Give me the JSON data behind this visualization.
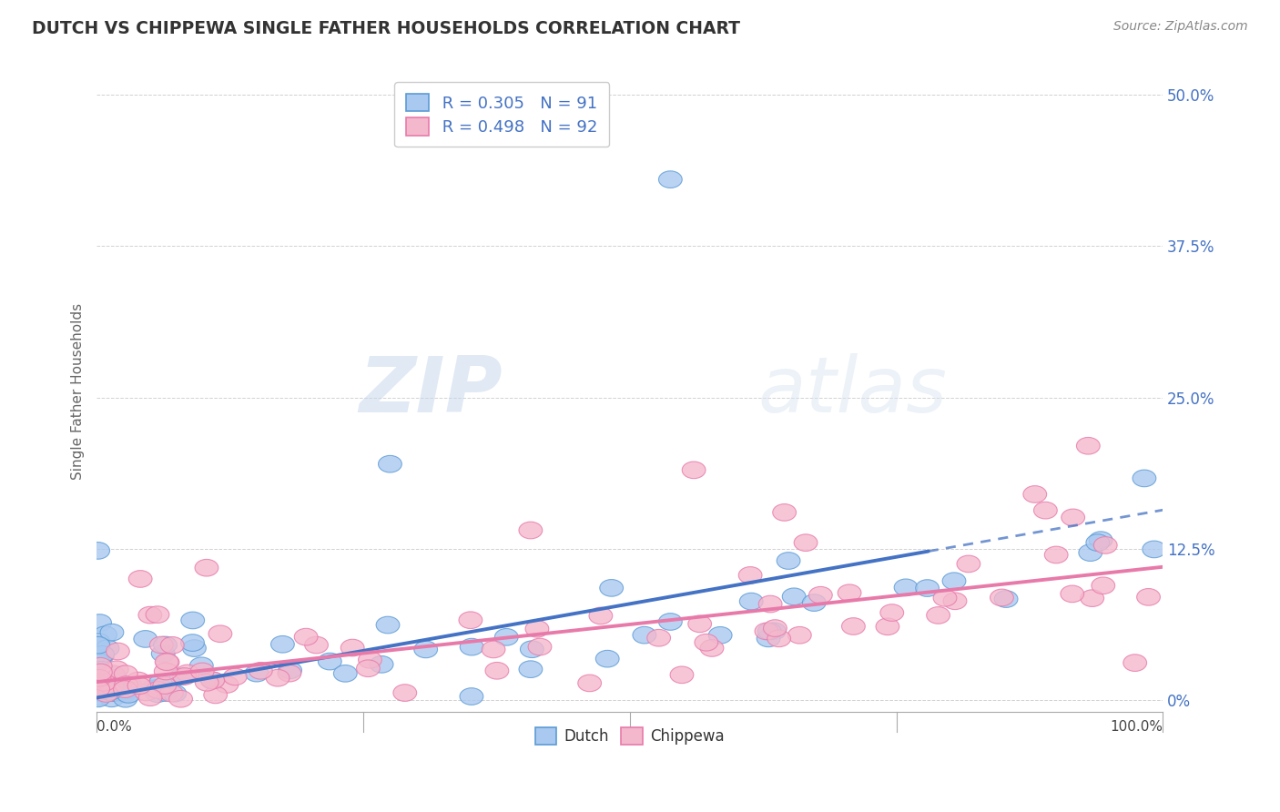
{
  "title": "DUTCH VS CHIPPEWA SINGLE FATHER HOUSEHOLDS CORRELATION CHART",
  "source_text": "Source: ZipAtlas.com",
  "ylabel": "Single Father Households",
  "r_dutch": 0.305,
  "n_dutch": 91,
  "r_chippewa": 0.498,
  "n_chippewa": 92,
  "color_dutch_fill": "#aac9f0",
  "color_dutch_edge": "#5b9bd5",
  "color_chippewa_fill": "#f4b8cc",
  "color_chippewa_edge": "#e87aaa",
  "color_dutch_line": "#4472c4",
  "color_chippewa_line": "#e87aaa",
  "yticks": [
    0.0,
    0.125,
    0.25,
    0.375,
    0.5
  ],
  "ytick_labels_right": [
    "0%",
    "12.5%",
    "25.0%",
    "37.5%",
    "50.0%"
  ],
  "xtick_labels": [
    "0.0%",
    "100.0%"
  ],
  "watermark_zip": "ZIP",
  "watermark_atlas": "atlas",
  "background_color": "#ffffff",
  "grid_color": "#cccccc",
  "legend_label_dutch": "Dutch",
  "legend_label_chippewa": "Chippewa"
}
